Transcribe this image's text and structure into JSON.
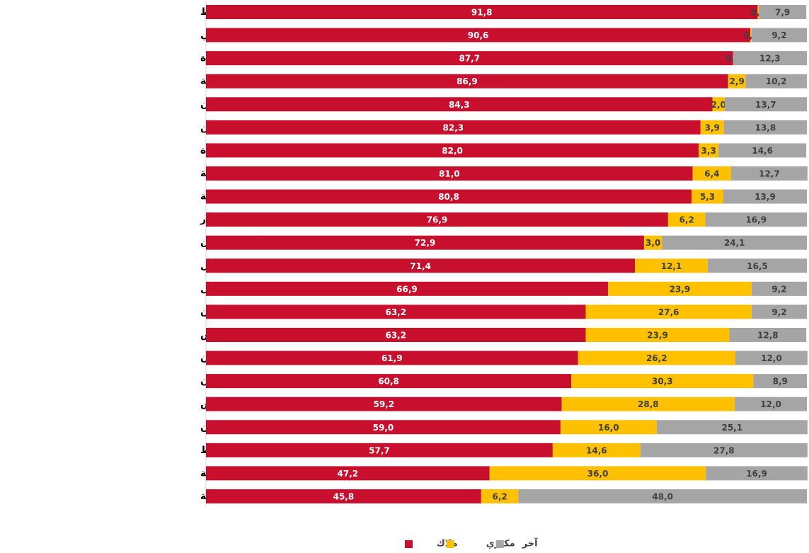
{
  "chart_data": {
    "type": "stacked-bar-horizontal",
    "categories": [
      "جماعة سيدي عبد الله الخياط",
      "جماعة وليلي",
      "جماعة شرقاوة",
      "جماعة عين الجمعة",
      "جماعة عين كرمة-واد الرمان",
      "جماعة المغاصيين",
      "جماعة واد الجديدة",
      "جماعة الدخيسة",
      "جماعة المهاية",
      "جماعة نزالة بني عمار",
      "جماعة دار أم السلطان",
      "جماعة أيت ولال",
      "جماعة تولال",
      "جماعة مولاي ادريس زرهون",
      "عمالة مكناس",
      "جماعة ويسلان",
      "جماعة بوفكران",
      "جماعة مكناس",
      "جماعة سيدي سليمان مول الكيفان",
      "جماعة مجاط",
      "جماعة المشور الستينية",
      "جماعة عين عرمة"
    ],
    "xlim": [
      0,
      100
    ],
    "series": [
      {
        "name": "ملاك",
        "color": "#c8102e",
        "values": [
          91.8,
          90.6,
          87.7,
          86.9,
          84.3,
          82.3,
          82.0,
          81.0,
          80.8,
          76.9,
          72.9,
          71.4,
          66.9,
          63.2,
          63.2,
          61.9,
          60.8,
          59.2,
          59.0,
          57.7,
          47.2,
          45.8
        ],
        "value_labels": [
          "91,8",
          "90,6",
          "87,7",
          "86,9",
          "84,3",
          "82,3",
          "82,0",
          "81,0",
          "80,8",
          "76,9",
          "72,9",
          "71,4",
          "66,9",
          "63,2",
          "63,2",
          "61,9",
          "60,8",
          "59,2",
          "59,0",
          "57,7",
          "47,2",
          "45,8"
        ]
      },
      {
        "name": "مكتري",
        "color": "#ffc000",
        "values": [
          0.2,
          0.2,
          0.0,
          2.9,
          2.0,
          3.9,
          3.3,
          6.4,
          5.3,
          6.2,
          3.0,
          12.1,
          23.9,
          27.6,
          23.9,
          26.2,
          30.3,
          28.8,
          16.0,
          14.6,
          36.0,
          6.2
        ],
        "value_labels": [
          "0,2",
          "0,2",
          "0,0",
          "2,9",
          "2,0",
          "3,9",
          "3,3",
          "6,4",
          "5,3",
          "6,2",
          "3,0",
          "12,1",
          "23,9",
          "27,6",
          "23,9",
          "26,2",
          "30,3",
          "28,8",
          "16,0",
          "14,6",
          "36,0",
          "6,2"
        ]
      },
      {
        "name": "آخر",
        "color": "#a5a5a5",
        "values": [
          7.9,
          9.2,
          12.3,
          10.2,
          13.7,
          13.8,
          14.6,
          12.7,
          13.9,
          16.9,
          24.1,
          16.5,
          9.2,
          9.2,
          12.8,
          12.0,
          8.9,
          12.0,
          25.1,
          27.8,
          16.9,
          48.0
        ],
        "value_labels": [
          "7,9",
          "9,2",
          "12,3",
          "10,2",
          "13,7",
          "13,8",
          "14,6",
          "12,7",
          "13,9",
          "16,9",
          "24,1",
          "16,5",
          "9,2",
          "9,2",
          "12,8",
          "12,0",
          "8,9",
          "12,0",
          "25,1",
          "27,8",
          "16,9",
          "48,0"
        ]
      }
    ]
  }
}
